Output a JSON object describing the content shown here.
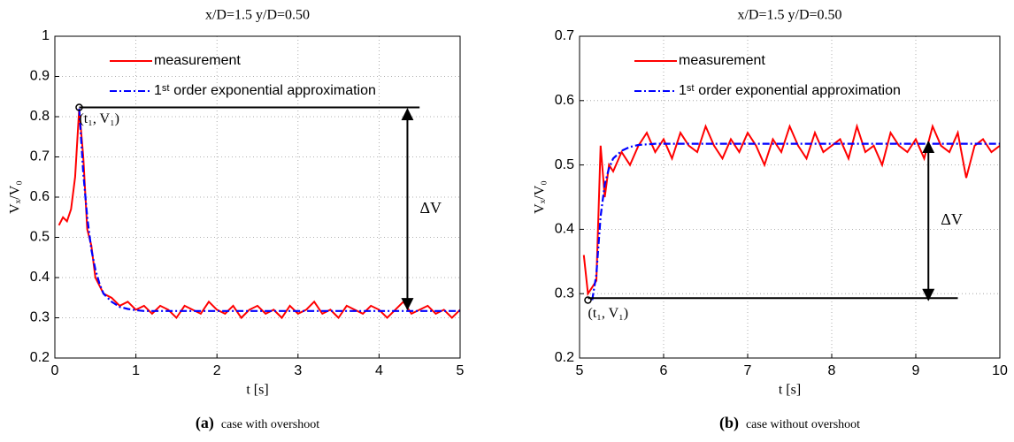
{
  "chart_data": [
    {
      "type": "line",
      "title": "x/D=1.5 y/D=0.50",
      "xlabel": "t [s]",
      "ylabel": "Vₓ/V₀",
      "caption_label": "(a)",
      "caption": "case with overshoot",
      "xlim": [
        0,
        5
      ],
      "ylim": [
        0.2,
        1
      ],
      "xticks": [
        0,
        1,
        2,
        3,
        4,
        5
      ],
      "yticks": [
        0.2,
        0.3,
        0.4,
        0.5,
        0.6,
        0.7,
        0.8,
        0.9,
        1
      ],
      "grid": true,
      "legend": "upper left",
      "x": [
        0.05,
        0.1,
        0.15,
        0.2,
        0.25,
        0.3,
        0.35,
        0.4,
        0.45,
        0.5,
        0.55,
        0.6,
        0.7,
        0.8,
        0.9,
        1.0,
        1.1,
        1.2,
        1.3,
        1.4,
        1.5,
        1.6,
        1.7,
        1.8,
        1.9,
        2.0,
        2.1,
        2.2,
        2.3,
        2.4,
        2.5,
        2.6,
        2.7,
        2.8,
        2.9,
        3.0,
        3.1,
        3.2,
        3.3,
        3.4,
        3.5,
        3.6,
        3.7,
        3.8,
        3.9,
        4.0,
        4.1,
        4.2,
        4.3,
        4.4,
        4.5,
        4.6,
        4.7,
        4.8,
        4.9,
        5.0
      ],
      "series": [
        {
          "name": "measurement",
          "color": "#ff0000",
          "style": "solid",
          "values": [
            0.53,
            0.55,
            0.54,
            0.57,
            0.65,
            0.82,
            0.7,
            0.52,
            0.48,
            0.4,
            0.38,
            0.36,
            0.35,
            0.33,
            0.34,
            0.32,
            0.33,
            0.31,
            0.33,
            0.32,
            0.3,
            0.33,
            0.32,
            0.31,
            0.34,
            0.32,
            0.31,
            0.33,
            0.3,
            0.32,
            0.33,
            0.31,
            0.32,
            0.3,
            0.33,
            0.31,
            0.32,
            0.34,
            0.31,
            0.32,
            0.3,
            0.33,
            0.32,
            0.31,
            0.33,
            0.32,
            0.3,
            0.32,
            0.34,
            0.31,
            0.32,
            0.33,
            0.31,
            0.32,
            0.3,
            0.32
          ]
        },
        {
          "name": "1ˢᵗ order exponential approximation",
          "color": "#0000ff",
          "style": "dashdot",
          "values": [
            null,
            null,
            null,
            null,
            null,
            0.82,
            0.66,
            0.55,
            0.47,
            0.42,
            0.385,
            0.36,
            0.34,
            0.327,
            0.322,
            0.319,
            0.317,
            0.317,
            0.317,
            0.317,
            0.317,
            0.317,
            0.317,
            0.317,
            0.317,
            0.317,
            0.317,
            0.317,
            0.317,
            0.317,
            0.317,
            0.317,
            0.317,
            0.317,
            0.317,
            0.317,
            0.317,
            0.317,
            0.317,
            0.317,
            0.317,
            0.317,
            0.317,
            0.317,
            0.317,
            0.317,
            0.317,
            0.317,
            0.317,
            0.317,
            0.317,
            0.317,
            0.317,
            0.317,
            0.317,
            0.317
          ]
        }
      ],
      "annotations": {
        "marker": {
          "x": 0.3,
          "y": 0.823,
          "label": "(t₁, V₁)"
        },
        "level_line": {
          "x": [
            0.3,
            4.5
          ],
          "y": 0.823
        },
        "arrow": {
          "x": 4.35,
          "y": [
            0.823,
            0.317
          ],
          "label": "ΔV"
        }
      }
    },
    {
      "type": "line",
      "title": "x/D=1.5 y/D=0.50",
      "xlabel": "t [s]",
      "ylabel": "Vₓ/V₀",
      "caption_label": "(b)",
      "caption": "case without overshoot",
      "xlim": [
        5,
        10
      ],
      "ylim": [
        0.2,
        0.7
      ],
      "xticks": [
        5,
        6,
        7,
        8,
        9,
        10
      ],
      "yticks": [
        0.2,
        0.3,
        0.4,
        0.5,
        0.6,
        0.7
      ],
      "grid": true,
      "legend": "upper left",
      "x": [
        5.05,
        5.1,
        5.15,
        5.2,
        5.25,
        5.3,
        5.35,
        5.4,
        5.5,
        5.6,
        5.7,
        5.8,
        5.9,
        6.0,
        6.1,
        6.2,
        6.3,
        6.4,
        6.5,
        6.6,
        6.7,
        6.8,
        6.9,
        7.0,
        7.1,
        7.2,
        7.3,
        7.4,
        7.5,
        7.6,
        7.7,
        7.8,
        7.9,
        8.0,
        8.1,
        8.2,
        8.3,
        8.4,
        8.5,
        8.6,
        8.7,
        8.8,
        8.9,
        9.0,
        9.1,
        9.2,
        9.3,
        9.4,
        9.5,
        9.6,
        9.7,
        9.8,
        9.9,
        10.0
      ],
      "series": [
        {
          "name": "measurement",
          "color": "#ff0000",
          "style": "solid",
          "values": [
            0.36,
            0.3,
            0.31,
            0.32,
            0.53,
            0.45,
            0.5,
            0.49,
            0.52,
            0.5,
            0.53,
            0.55,
            0.52,
            0.54,
            0.51,
            0.55,
            0.53,
            0.52,
            0.56,
            0.53,
            0.51,
            0.54,
            0.52,
            0.55,
            0.53,
            0.5,
            0.54,
            0.52,
            0.56,
            0.53,
            0.51,
            0.55,
            0.52,
            0.53,
            0.54,
            0.51,
            0.56,
            0.52,
            0.53,
            0.5,
            0.55,
            0.53,
            0.52,
            0.54,
            0.51,
            0.56,
            0.53,
            0.52,
            0.55,
            0.48,
            0.53,
            0.54,
            0.52,
            0.53
          ]
        },
        {
          "name": "1ˢᵗ order exponential approximation",
          "color": "#0000ff",
          "style": "dashdot",
          "values": [
            null,
            null,
            0.29,
            0.33,
            0.42,
            0.47,
            0.495,
            0.51,
            0.522,
            0.528,
            0.531,
            0.532,
            0.533,
            0.533,
            0.533,
            0.533,
            0.533,
            0.533,
            0.533,
            0.533,
            0.533,
            0.533,
            0.533,
            0.533,
            0.533,
            0.533,
            0.533,
            0.533,
            0.533,
            0.533,
            0.533,
            0.533,
            0.533,
            0.533,
            0.533,
            0.533,
            0.533,
            0.533,
            0.533,
            0.533,
            0.533,
            0.533,
            0.533,
            0.533,
            0.533,
            0.533,
            0.533,
            0.533,
            0.533,
            0.533,
            0.533,
            0.533,
            0.533,
            0.533
          ]
        }
      ],
      "annotations": {
        "marker": {
          "x": 5.1,
          "y": 0.29,
          "label": "(t₁, V₁)"
        },
        "level_line": {
          "x": [
            5.1,
            9.5
          ],
          "y": 0.293
        },
        "arrow": {
          "x": 9.15,
          "y": [
            0.293,
            0.533
          ],
          "label": "ΔV"
        }
      }
    }
  ]
}
